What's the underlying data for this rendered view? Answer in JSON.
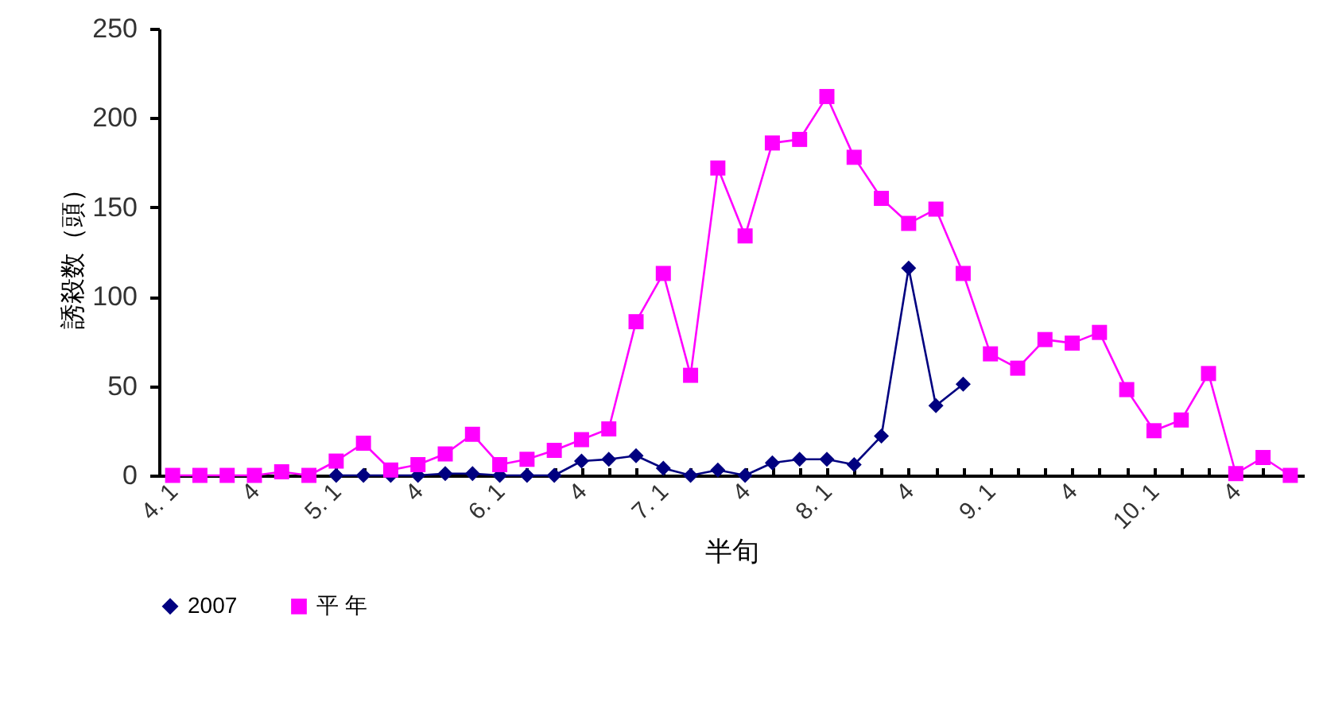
{
  "chart_data": {
    "type": "line",
    "ylabel": "誘殺数（頭）",
    "xlabel": "半旬",
    "categories": [
      "4. 1",
      null,
      null,
      "4",
      null,
      null,
      "5. 1",
      null,
      null,
      "4",
      null,
      null,
      "6. 1",
      null,
      null,
      "4",
      null,
      null,
      "7. 1",
      null,
      null,
      "4",
      null,
      null,
      "8. 1",
      null,
      null,
      "4",
      null,
      null,
      "9. 1",
      null,
      null,
      "4",
      null,
      null,
      "10. 1",
      null,
      null,
      "4",
      null,
      null
    ],
    "series": [
      {
        "name": "2007",
        "color": "#000080",
        "marker": "diamond",
        "values": [
          null,
          null,
          null,
          null,
          null,
          null,
          0,
          0,
          0,
          0,
          1,
          1,
          0,
          0,
          0,
          8,
          9,
          11,
          4,
          0,
          3,
          0,
          7,
          9,
          9,
          6,
          22,
          116,
          39,
          51,
          null,
          null,
          null,
          null,
          null,
          null,
          null,
          null,
          null,
          null,
          null,
          null
        ]
      },
      {
        "name": "平 年",
        "color": "#ff00ff",
        "marker": "square",
        "values": [
          0,
          0,
          0,
          0,
          2,
          0,
          8,
          18,
          3,
          6,
          12,
          23,
          6,
          9,
          14,
          20,
          26,
          86,
          113,
          56,
          172,
          134,
          186,
          188,
          212,
          178,
          155,
          141,
          149,
          113,
          68,
          60,
          76,
          74,
          80,
          48,
          25,
          31,
          57,
          1,
          10,
          0
        ]
      }
    ],
    "ylim": [
      0,
      250
    ],
    "yticks": [
      0,
      50,
      100,
      150,
      200,
      250
    ],
    "grid": false,
    "legend": "bottom"
  }
}
